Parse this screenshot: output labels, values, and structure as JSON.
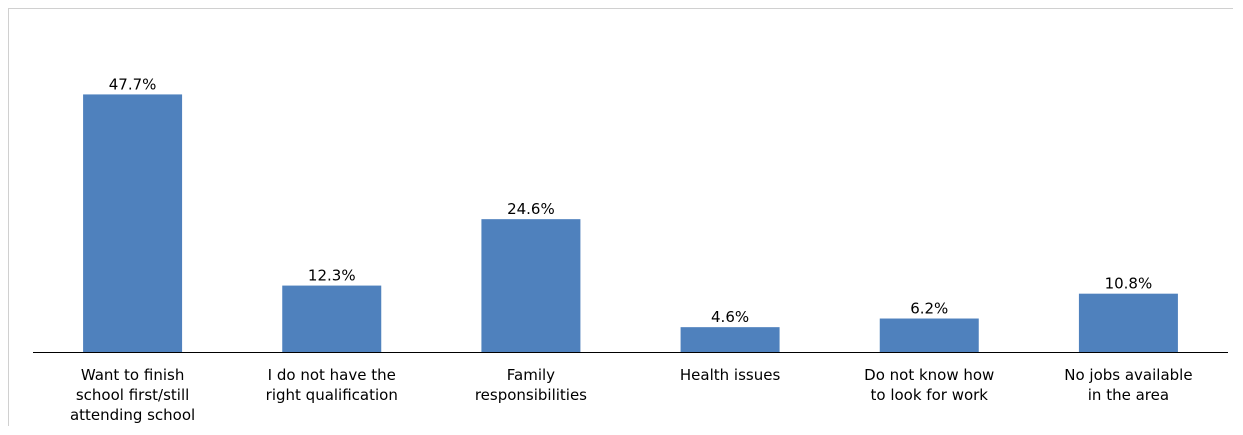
{
  "chart_data": {
    "type": "bar",
    "categories": [
      [
        "Want to finish",
        "school first/still",
        "attending school"
      ],
      [
        "I do not have the",
        "right qualification"
      ],
      [
        "Family",
        "responsibilities"
      ],
      [
        "Health issues"
      ],
      [
        "Do not know how",
        "to look for work"
      ],
      [
        "No jobs available",
        "in the area"
      ]
    ],
    "values": [
      47.7,
      12.3,
      24.6,
      4.6,
      6.2,
      10.8
    ],
    "value_labels": [
      "47.7%",
      "12.3%",
      "24.6%",
      "4.6%",
      "6.2%",
      "10.8%"
    ],
    "bar_color": "#4f81bd",
    "ylim": [
      0,
      50
    ],
    "grid": false,
    "legend": "none"
  }
}
